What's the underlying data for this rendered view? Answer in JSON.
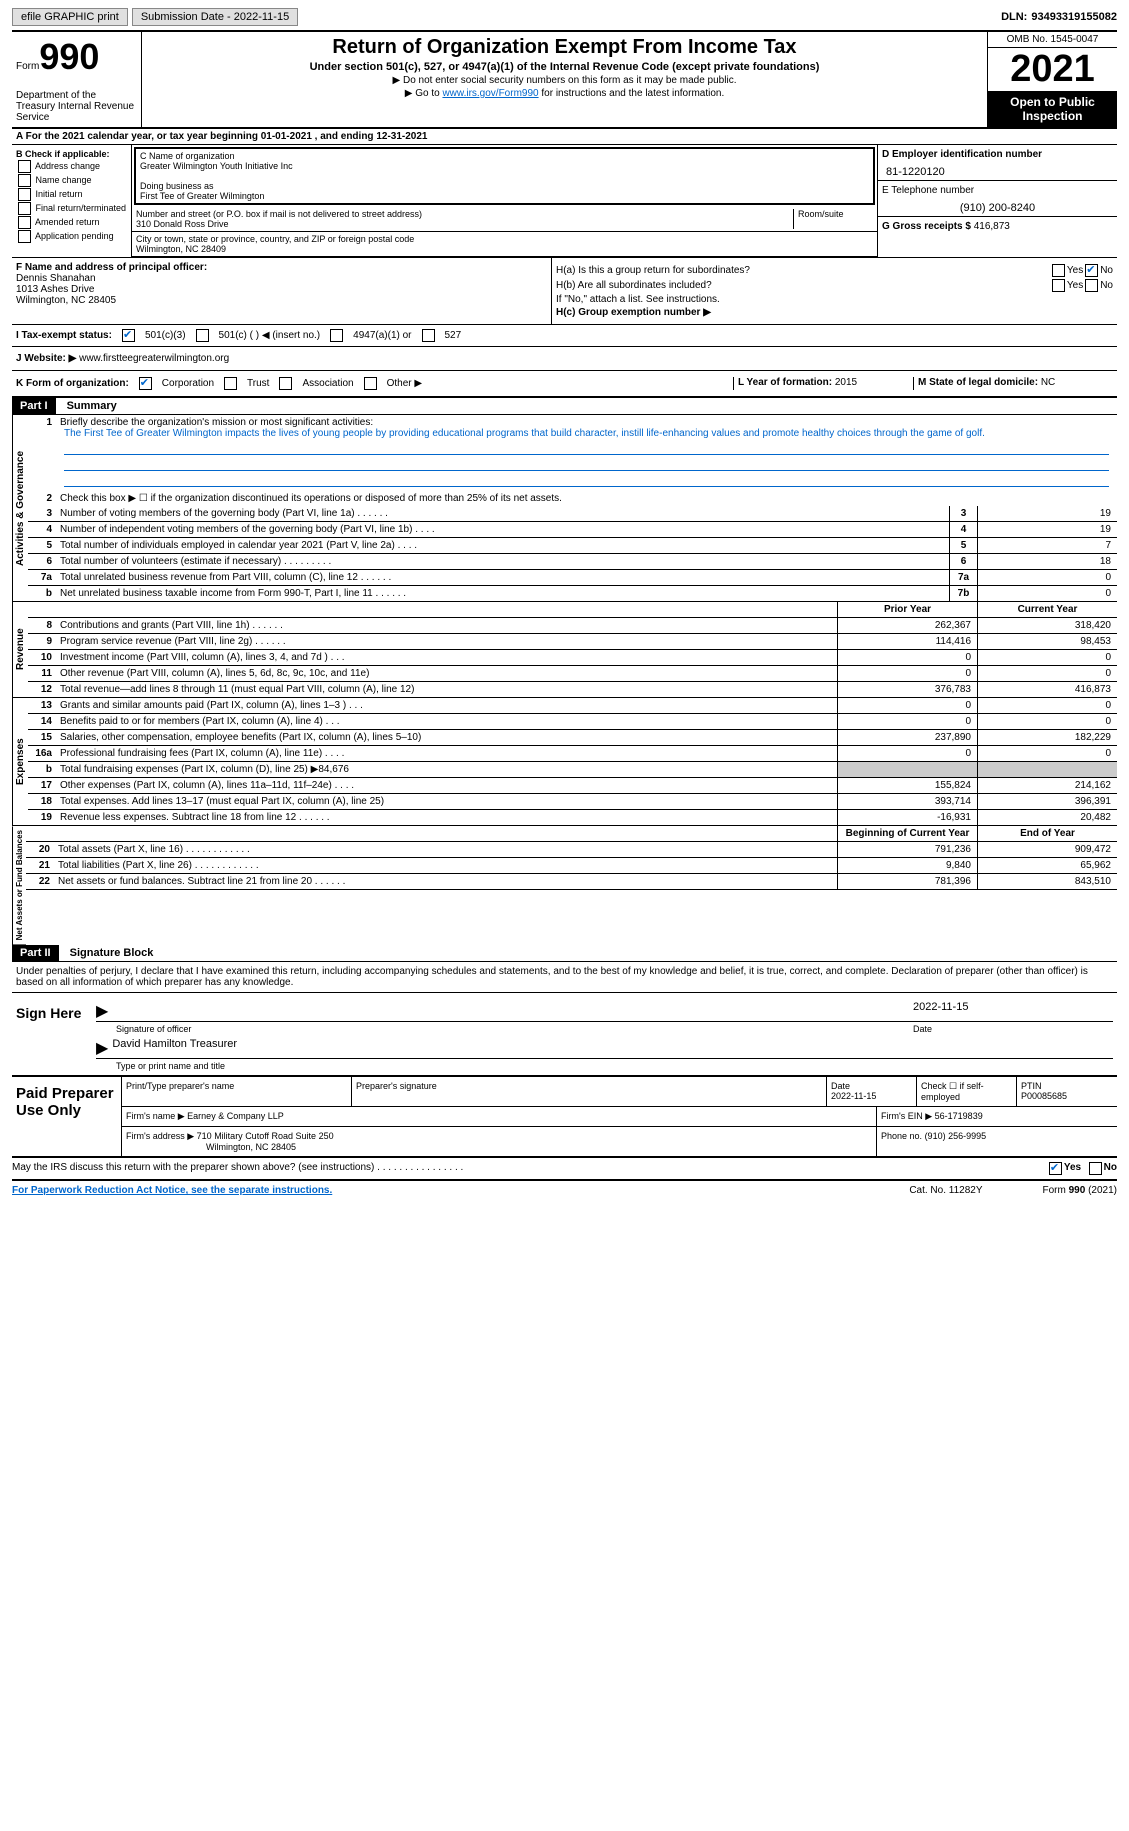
{
  "topbar": {
    "efile": "efile GRAPHIC print",
    "submission": "Submission Date - 2022-11-15",
    "dln_label": "DLN:",
    "dln": "93493319155082"
  },
  "header": {
    "form_word": "Form",
    "form_num": "990",
    "dept": "Department of the Treasury Internal Revenue Service",
    "title": "Return of Organization Exempt From Income Tax",
    "subtitle": "Under section 501(c), 527, or 4947(a)(1) of the Internal Revenue Code (except private foundations)",
    "line1": "▶ Do not enter social security numbers on this form as it may be made public.",
    "line2_pre": "▶ Go to ",
    "line2_link": "www.irs.gov/Form990",
    "line2_post": " for instructions and the latest information.",
    "omb": "OMB No. 1545-0047",
    "year": "2021",
    "inspection": "Open to Public Inspection"
  },
  "row_a": "A For the 2021 calendar year, or tax year beginning 01-01-2021   , and ending 12-31-2021",
  "section_b": {
    "heading": "B Check if applicable:",
    "opts": [
      "Address change",
      "Name change",
      "Initial return",
      "Final return/terminated",
      "Amended return",
      "Application pending"
    ]
  },
  "section_c": {
    "name_label": "C Name of organization",
    "name": "Greater Wilmington Youth Initiative Inc",
    "dba_label": "Doing business as",
    "dba": "First Tee of Greater Wilmington",
    "street_label": "Number and street (or P.O. box if mail is not delivered to street address)",
    "room_label": "Room/suite",
    "street": "310 Donald Ross Drive",
    "city_label": "City or town, state or province, country, and ZIP or foreign postal code",
    "city": "Wilmington, NC  28409"
  },
  "section_d": {
    "ein_label": "D Employer identification number",
    "ein": "81-1220120",
    "phone_label": "E Telephone number",
    "phone": "(910) 200-8240",
    "gross_label": "G Gross receipts $",
    "gross": "416,873"
  },
  "section_f": {
    "label": "F Name and address of principal officer:",
    "name": "Dennis Shanahan",
    "addr1": "1013 Ashes Drive",
    "addr2": "Wilmington, NC  28405"
  },
  "section_h": {
    "ha": "H(a)  Is this a group return for subordinates?",
    "hb": "H(b)  Are all subordinates included?",
    "hb_note": "If \"No,\" attach a list. See instructions.",
    "hc": "H(c)  Group exemption number ▶",
    "yes": "Yes",
    "no": "No"
  },
  "row_i": {
    "label": "I    Tax-exempt status:",
    "opt1": "501(c)(3)",
    "opt2": "501(c) (  ) ◀ (insert no.)",
    "opt3": "4947(a)(1) or",
    "opt4": "527"
  },
  "row_j": {
    "label": "J   Website: ▶",
    "val": "www.firstteegreaterwilmington.org"
  },
  "row_k": {
    "label": "K Form of organization:",
    "opts": [
      "Corporation",
      "Trust",
      "Association",
      "Other ▶"
    ],
    "l_label": "L Year of formation:",
    "l_val": "2015",
    "m_label": "M State of legal domicile:",
    "m_val": "NC"
  },
  "part1": {
    "hdr": "Part I",
    "title": "Summary",
    "line1_label": "Briefly describe the organization's mission or most significant activities:",
    "mission": "The First Tee of Greater Wilmington impacts the lives of young people by providing educational programs that build character, instill life-enhancing values and promote healthy choices through the game of golf.",
    "line2": "Check this box ▶ ☐  if the organization discontinued its operations or disposed of more than 25% of its net assets.",
    "governance_label": "Activities & Governance",
    "revenue_label": "Revenue",
    "expenses_label": "Expenses",
    "netassets_label": "Net Assets or Fund Balances",
    "prior_year": "Prior Year",
    "current_year": "Current Year",
    "begin_year": "Beginning of Current Year",
    "end_year": "End of Year",
    "rows_gov": [
      {
        "n": "3",
        "label": "Number of voting members of the governing body (Part VI, line 1a)   .    .    .    .    .    .",
        "box": "3",
        "val": "19"
      },
      {
        "n": "4",
        "label": "Number of independent voting members of the governing body (Part VI, line 1b)   .    .    .    .",
        "box": "4",
        "val": "19"
      },
      {
        "n": "5",
        "label": "Total number of individuals employed in calendar year 2021 (Part V, line 2a)   .    .    .    .",
        "box": "5",
        "val": "7"
      },
      {
        "n": "6",
        "label": "Total number of volunteers (estimate if necessary)    .    .    .    .    .    .    .    .    .",
        "box": "6",
        "val": "18"
      },
      {
        "n": "7a",
        "label": "Total unrelated business revenue from Part VIII, column (C), line 12   .    .    .    .    .    .",
        "box": "7a",
        "val": "0"
      },
      {
        "n": "b",
        "label": "Net unrelated business taxable income from Form 990-T, Part I, line 11   .    .    .    .    .    .",
        "box": "7b",
        "val": "0"
      }
    ],
    "rows_rev": [
      {
        "n": "8",
        "label": "Contributions and grants (Part VIII, line 1h)    .    .    .    .    .    .",
        "py": "262,367",
        "cy": "318,420"
      },
      {
        "n": "9",
        "label": "Program service revenue (Part VIII, line 2g)    .    .    .    .    .    .",
        "py": "114,416",
        "cy": "98,453"
      },
      {
        "n": "10",
        "label": "Investment income (Part VIII, column (A), lines 3, 4, and 7d )   .    .    .",
        "py": "0",
        "cy": "0"
      },
      {
        "n": "11",
        "label": "Other revenue (Part VIII, column (A), lines 5, 6d, 8c, 9c, 10c, and 11e)",
        "py": "0",
        "cy": "0"
      },
      {
        "n": "12",
        "label": "Total revenue—add lines 8 through 11 (must equal Part VIII, column (A), line 12)",
        "py": "376,783",
        "cy": "416,873"
      }
    ],
    "rows_exp": [
      {
        "n": "13",
        "label": "Grants and similar amounts paid (Part IX, column (A), lines 1–3 )   .    .    .",
        "py": "0",
        "cy": "0"
      },
      {
        "n": "14",
        "label": "Benefits paid to or for members (Part IX, column (A), line 4)   .    .    .",
        "py": "0",
        "cy": "0"
      },
      {
        "n": "15",
        "label": "Salaries, other compensation, employee benefits (Part IX, column (A), lines 5–10)",
        "py": "237,890",
        "cy": "182,229"
      },
      {
        "n": "16a",
        "label": "Professional fundraising fees (Part IX, column (A), line 11e)   .    .    .    .",
        "py": "0",
        "cy": "0"
      },
      {
        "n": "b",
        "label": "Total fundraising expenses (Part IX, column (D), line 25) ▶84,676",
        "py": "grey",
        "cy": "grey"
      },
      {
        "n": "17",
        "label": "Other expenses (Part IX, column (A), lines 11a–11d, 11f–24e)   .    .    .    .",
        "py": "155,824",
        "cy": "214,162"
      },
      {
        "n": "18",
        "label": "Total expenses. Add lines 13–17 (must equal Part IX, column (A), line 25)",
        "py": "393,714",
        "cy": "396,391"
      },
      {
        "n": "19",
        "label": "Revenue less expenses. Subtract line 18 from line 12   .    .    .    .    .    .",
        "py": "-16,931",
        "cy": "20,482"
      }
    ],
    "rows_net": [
      {
        "n": "20",
        "label": "Total assets (Part X, line 16)   .    .    .    .    .    .    .    .    .    .    .    .",
        "py": "791,236",
        "cy": "909,472"
      },
      {
        "n": "21",
        "label": "Total liabilities (Part X, line 26)   .    .    .    .    .    .    .    .    .    .    .    .",
        "py": "9,840",
        "cy": "65,962"
      },
      {
        "n": "22",
        "label": "Net assets or fund balances. Subtract line 21 from line 20   .    .    .    .    .    .",
        "py": "781,396",
        "cy": "843,510"
      }
    ]
  },
  "part2": {
    "hdr": "Part II",
    "title": "Signature Block",
    "decl": "Under penalties of perjury, I declare that I have examined this return, including accompanying schedules and statements, and to the best of my knowledge and belief, it is true, correct, and complete. Declaration of preparer (other than officer) is based on all information of which preparer has any knowledge.",
    "sign_here": "Sign Here",
    "sig_officer": "Signature of officer",
    "sig_date": "2022-11-15",
    "date_label": "Date",
    "sig_name": "David Hamilton Treasurer",
    "sig_name_label": "Type or print name and title"
  },
  "prep": {
    "title": "Paid Preparer Use Only",
    "print_label": "Print/Type preparer's name",
    "sig_label": "Preparer's signature",
    "date_label": "Date",
    "date": "2022-11-15",
    "check_label": "Check ☐ if self-employed",
    "ptin_label": "PTIN",
    "ptin": "P00085685",
    "firm_name_label": "Firm's name    ▶",
    "firm_name": "Earney & Company LLP",
    "firm_ein_label": "Firm's EIN ▶",
    "firm_ein": "56-1719839",
    "firm_addr_label": "Firm's address ▶",
    "firm_addr1": "710 Military Cutoff Road Suite 250",
    "firm_addr2": "Wilmington, NC  28405",
    "phone_label": "Phone no.",
    "phone": "(910) 256-9995"
  },
  "footer": {
    "discuss": "May the IRS discuss this return with the preparer shown above? (see instructions)   .    .    .    .    .    .    .    .    .    .    .    .    .    .    .    .",
    "yes": "Yes",
    "no": "No",
    "paperwork": "For Paperwork Reduction Act Notice, see the separate instructions.",
    "cat": "Cat. No. 11282Y",
    "form": "Form 990 (2021)"
  }
}
